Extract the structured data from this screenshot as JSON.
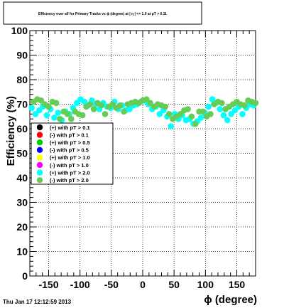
{
  "chart_data": {
    "type": "scatter",
    "title": "Efficiency over all for Primary Tracks vs ϕ (degree) at | η | <= 1.0 at pT > 0.11",
    "xlabel": "ϕ (degree)",
    "ylabel": "Efficiency (%)",
    "xlim": [
      -180,
      180
    ],
    "ylim": [
      0,
      100
    ],
    "x_ticks": [
      -150,
      -100,
      -50,
      0,
      50,
      100,
      150
    ],
    "x_tick_labels": [
      "-150",
      "-100",
      "-50",
      "0",
      "50",
      "100",
      "150"
    ],
    "y_ticks": [
      0,
      10,
      20,
      30,
      40,
      50,
      60,
      70,
      80,
      90,
      100
    ],
    "y_tick_labels": [
      "0",
      "10",
      "20",
      "30",
      "40",
      "50",
      "60",
      "70",
      "80",
      "90",
      "100"
    ],
    "grid": true,
    "legend_position": "left-center",
    "date_stamp": "Thu Jan 17 12:12:59 2013",
    "series": [
      {
        "name": "(+) with pT > 0.1",
        "color": "#000000",
        "x": [],
        "y": []
      },
      {
        "name": "(-) with pT > 0.1",
        "color": "#ff0000",
        "x": [],
        "y": []
      },
      {
        "name": "(+) with pT > 0.5",
        "color": "#00cc00",
        "x": [],
        "y": []
      },
      {
        "name": "(-) with pT > 0.5",
        "color": "#0000ff",
        "x": [],
        "y": []
      },
      {
        "name": "(+) with pT > 1.0",
        "color": "#ffff00",
        "x": [],
        "y": []
      },
      {
        "name": "(-) with pT > 1.0",
        "color": "#ff00ff",
        "x": [],
        "y": []
      },
      {
        "name": "(+) with pT > 2.0",
        "color": "#00ffff",
        "x": [
          -177,
          -171,
          -165,
          -159,
          -153,
          -147,
          -141,
          -135,
          -129,
          -123,
          -117,
          -111,
          -105,
          -99,
          -93,
          -87,
          -81,
          -75,
          -69,
          -63,
          -57,
          -51,
          -45,
          -39,
          -33,
          -27,
          -21,
          -15,
          -9,
          -3,
          3,
          9,
          15,
          21,
          27,
          33,
          39,
          45,
          51,
          57,
          63,
          69,
          75,
          81,
          87,
          93,
          99,
          105,
          111,
          117,
          123,
          129,
          135,
          141,
          147,
          153,
          159,
          165,
          171,
          177
        ],
        "y": [
          68.5,
          66,
          67.5,
          69,
          65.5,
          68,
          64.5,
          66.5,
          63.5,
          67,
          66,
          68.5,
          70.5,
          72,
          71,
          69.5,
          71.5,
          70,
          68,
          70.5,
          69,
          68.5,
          71,
          68,
          69.5,
          67.5,
          68,
          69.5,
          70,
          71,
          71.5,
          70,
          68,
          69,
          66,
          67.5,
          65,
          61,
          66,
          64,
          65.5,
          63.5,
          64,
          62,
          63,
          64.5,
          66.5,
          69,
          72,
          70.5,
          68,
          65.5,
          63.5,
          66,
          67.5,
          69,
          66,
          68.5,
          70,
          69.5
        ]
      },
      {
        "name": "(-) with pT > 2.0",
        "color": "#66cc55",
        "x": [
          -174,
          -168,
          -162,
          -156,
          -150,
          -144,
          -138,
          -132,
          -126,
          -120,
          -114,
          -108,
          -102,
          -96,
          -90,
          -84,
          -78,
          -72,
          -66,
          -60,
          -54,
          -48,
          -42,
          -36,
          -30,
          -24,
          -18,
          -12,
          -6,
          0,
          6,
          12,
          18,
          24,
          30,
          36,
          42,
          48,
          54,
          60,
          66,
          72,
          78,
          84,
          90,
          96,
          102,
          108,
          114,
          120,
          126,
          132,
          138,
          144,
          150,
          156,
          162,
          168,
          174,
          180
        ],
        "y": [
          71,
          72,
          71.5,
          70,
          69,
          71,
          70.5,
          64,
          67,
          66,
          64,
          67,
          66,
          65.5,
          69,
          70,
          68,
          70.5,
          69.5,
          66,
          69,
          70,
          68.5,
          69.5,
          67,
          70,
          70.5,
          71,
          70.5,
          71.5,
          72,
          70.5,
          69,
          70,
          69.5,
          69,
          66,
          64,
          65,
          66,
          67.5,
          68,
          65,
          62,
          67,
          67,
          65,
          66,
          70,
          71,
          70.5,
          68,
          69,
          70,
          71,
          70,
          69.5,
          71.5,
          71,
          70.5
        ]
      }
    ]
  }
}
